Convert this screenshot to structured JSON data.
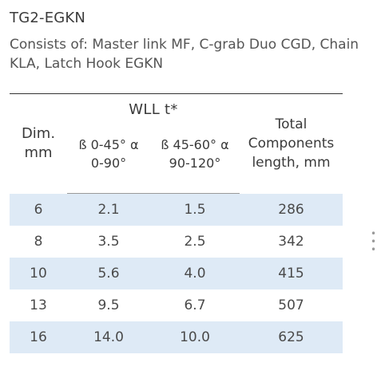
{
  "product_code": "TG2-EGKN",
  "description": "Consists of: Master link MF, C-grab Duo CGD, Chain KLA, Latch Hook EGKN",
  "table": {
    "headers": {
      "dim": "Dim. mm",
      "wll": "WLL t*",
      "angle_1": "ß 0-45° α 0-90°",
      "angle_2": "ß 45-60° α 90-120°",
      "total": "Total Components length, mm"
    },
    "rows": [
      {
        "dim": "6",
        "wll_1": "2.1",
        "wll_2": "1.5",
        "length": "286"
      },
      {
        "dim": "8",
        "wll_1": "3.5",
        "wll_2": "2.5",
        "length": "342"
      },
      {
        "dim": "10",
        "wll_1": "5.6",
        "wll_2": "4.0",
        "length": "415"
      },
      {
        "dim": "13",
        "wll_1": "9.5",
        "wll_2": "6.7",
        "length": "507"
      },
      {
        "dim": "16",
        "wll_1": "14.0",
        "wll_2": "10.0",
        "length": "625"
      }
    ]
  },
  "colors": {
    "row_shade": "#deeaf6",
    "rule": "#333333"
  }
}
